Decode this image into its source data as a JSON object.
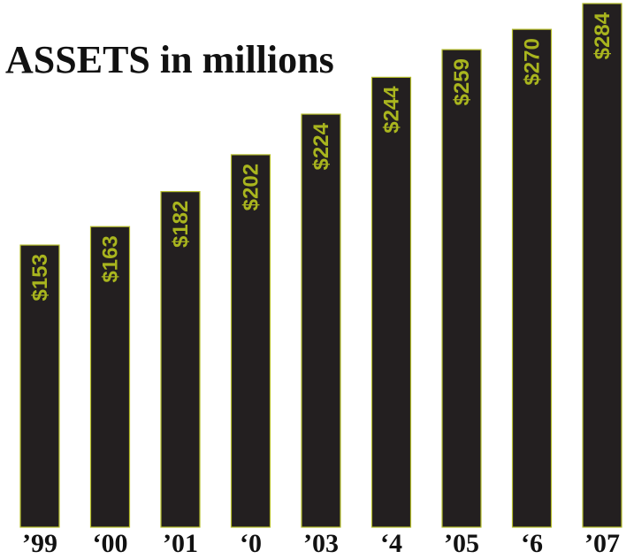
{
  "chart_data": {
    "type": "bar",
    "title": "ASSETS in millions",
    "categories": [
      "’99",
      "‘00",
      "’01",
      "‘0",
      "’03",
      "‘4",
      "’05",
      "‘6",
      "’07"
    ],
    "values": [
      153,
      163,
      182,
      202,
      224,
      244,
      259,
      270,
      284
    ],
    "value_labels": [
      "$153",
      "$163",
      "$182",
      "$202",
      "$224",
      "$244",
      "$259",
      "$270",
      "$284"
    ],
    "xlabel": "",
    "ylabel": "",
    "ylim": [
      0,
      284
    ],
    "grid": false,
    "legend": "none",
    "colors": {
      "bar_fill": "#231f20",
      "bar_outline": "#b5bd2a",
      "value_text": "#a9b51e",
      "text": "#111111",
      "background": "#ffffff"
    }
  }
}
